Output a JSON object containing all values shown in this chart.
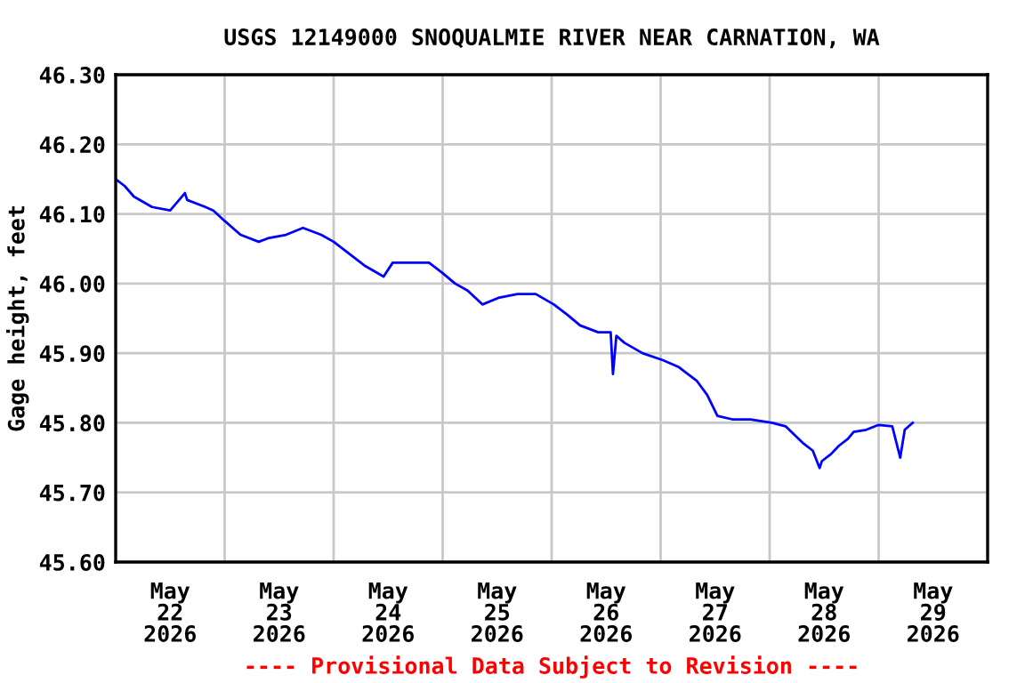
{
  "chart_data": {
    "type": "line",
    "title": "USGS 12149000 SNOQUALMIE RIVER NEAR CARNATION, WA",
    "ylabel": "Gage height, feet",
    "annotations": [
      "---- Provisional Data Subject to Revision ----"
    ],
    "x": [
      "2026-05-22T00:00",
      "2026-05-22T02:00",
      "2026-05-22T04:00",
      "2026-05-22T08:00",
      "2026-05-22T12:00",
      "2026-05-22T15:15",
      "2026-05-22T15:45",
      "2026-05-22T19:45",
      "2026-05-22T21:30",
      "2026-05-23T00:00",
      "2026-05-23T03:30",
      "2026-05-23T07:30",
      "2026-05-23T09:30",
      "2026-05-23T13:30",
      "2026-05-23T17:15",
      "2026-05-23T21:15",
      "2026-05-24T00:00",
      "2026-05-24T03:00",
      "2026-05-24T07:00",
      "2026-05-24T11:00",
      "2026-05-24T13:00",
      "2026-05-24T17:00",
      "2026-05-24T21:00",
      "2026-05-25T00:00",
      "2026-05-25T02:45",
      "2026-05-25T05:30",
      "2026-05-25T08:45",
      "2026-05-25T12:30",
      "2026-05-25T16:30",
      "2026-05-25T20:30",
      "2026-05-26T00:30",
      "2026-05-26T03:30",
      "2026-05-26T06:15",
      "2026-05-26T10:15",
      "2026-05-26T13:00",
      "2026-05-26T13:30",
      "2026-05-26T14:15",
      "2026-05-26T16:00",
      "2026-05-26T20:00",
      "2026-05-27T00:30",
      "2026-05-27T04:00",
      "2026-05-27T08:00",
      "2026-05-27T10:15",
      "2026-05-27T12:30",
      "2026-05-27T15:45",
      "2026-05-27T19:45",
      "2026-05-28T00:30",
      "2026-05-28T03:30",
      "2026-05-28T07:30",
      "2026-05-28T09:30",
      "2026-05-28T11:00",
      "2026-05-28T11:30",
      "2026-05-28T13:30",
      "2026-05-28T15:15",
      "2026-05-28T17:15",
      "2026-05-28T18:30",
      "2026-05-28T21:15",
      "2026-05-29T00:00",
      "2026-05-29T03:00",
      "2026-05-29T04:45",
      "2026-05-29T05:45",
      "2026-05-29T07:30"
    ],
    "series": [
      {
        "color": "#0000ff",
        "values": [
          46.15,
          46.14,
          46.125,
          46.11,
          46.105,
          46.13,
          46.12,
          46.11,
          46.105,
          46.09,
          46.07,
          46.06,
          46.065,
          46.07,
          46.08,
          46.07,
          46.06,
          46.045,
          46.025,
          46.01,
          46.03,
          46.03,
          46.03,
          46.015,
          46.0,
          45.99,
          45.97,
          45.98,
          45.985,
          45.985,
          45.97,
          45.955,
          45.94,
          45.93,
          45.93,
          45.87,
          45.925,
          45.915,
          45.9,
          45.89,
          45.88,
          45.86,
          45.84,
          45.81,
          45.805,
          45.805,
          45.8,
          45.795,
          45.77,
          45.76,
          45.735,
          45.745,
          45.755,
          45.767,
          45.777,
          45.787,
          45.79,
          45.797,
          45.795,
          45.75,
          45.79,
          45.8
        ]
      }
    ],
    "xlim": [
      "2026-05-22T00:00",
      "2026-05-30T00:00"
    ],
    "xticks": [
      {
        "value": "2026-05-22T00:00",
        "label": null
      },
      {
        "value": "2026-05-22T12:00",
        "label": "May\n22\n2026"
      },
      {
        "value": "2026-05-23T00:00",
        "label": null
      },
      {
        "value": "2026-05-23T12:00",
        "label": "May\n23\n2026"
      },
      {
        "value": "2026-05-24T00:00",
        "label": null
      },
      {
        "value": "2026-05-24T12:00",
        "label": "May\n24\n2026"
      },
      {
        "value": "2026-05-25T00:00",
        "label": null
      },
      {
        "value": "2026-05-25T12:00",
        "label": "May\n25\n2026"
      },
      {
        "value": "2026-05-26T00:00",
        "label": null
      },
      {
        "value": "2026-05-26T12:00",
        "label": "May\n26\n2026"
      },
      {
        "value": "2026-05-27T00:00",
        "label": null
      },
      {
        "value": "2026-05-27T12:00",
        "label": "May\n27\n2026"
      },
      {
        "value": "2026-05-28T00:00",
        "label": null
      },
      {
        "value": "2026-05-28T12:00",
        "label": "May\n28\n2026"
      },
      {
        "value": "2026-05-29T00:00",
        "label": null
      },
      {
        "value": "2026-05-29T12:00",
        "label": "May\n29\n2026"
      },
      {
        "value": "2026-05-30T00:00",
        "label": null
      }
    ],
    "ylim": [
      45.6,
      46.3
    ],
    "yticks": [
      {
        "value": 45.6,
        "label": "45.60"
      },
      {
        "value": 45.7,
        "label": "45.70"
      },
      {
        "value": 45.8,
        "label": "45.80"
      },
      {
        "value": 45.9,
        "label": "45.90"
      },
      {
        "value": 46.0,
        "label": "46.00"
      },
      {
        "value": 46.1,
        "label": "46.10"
      },
      {
        "value": 46.2,
        "label": "46.20"
      },
      {
        "value": 46.3,
        "label": "46.30"
      }
    ],
    "grid": true,
    "legend": false,
    "marker": "none",
    "line_style": "solid"
  }
}
